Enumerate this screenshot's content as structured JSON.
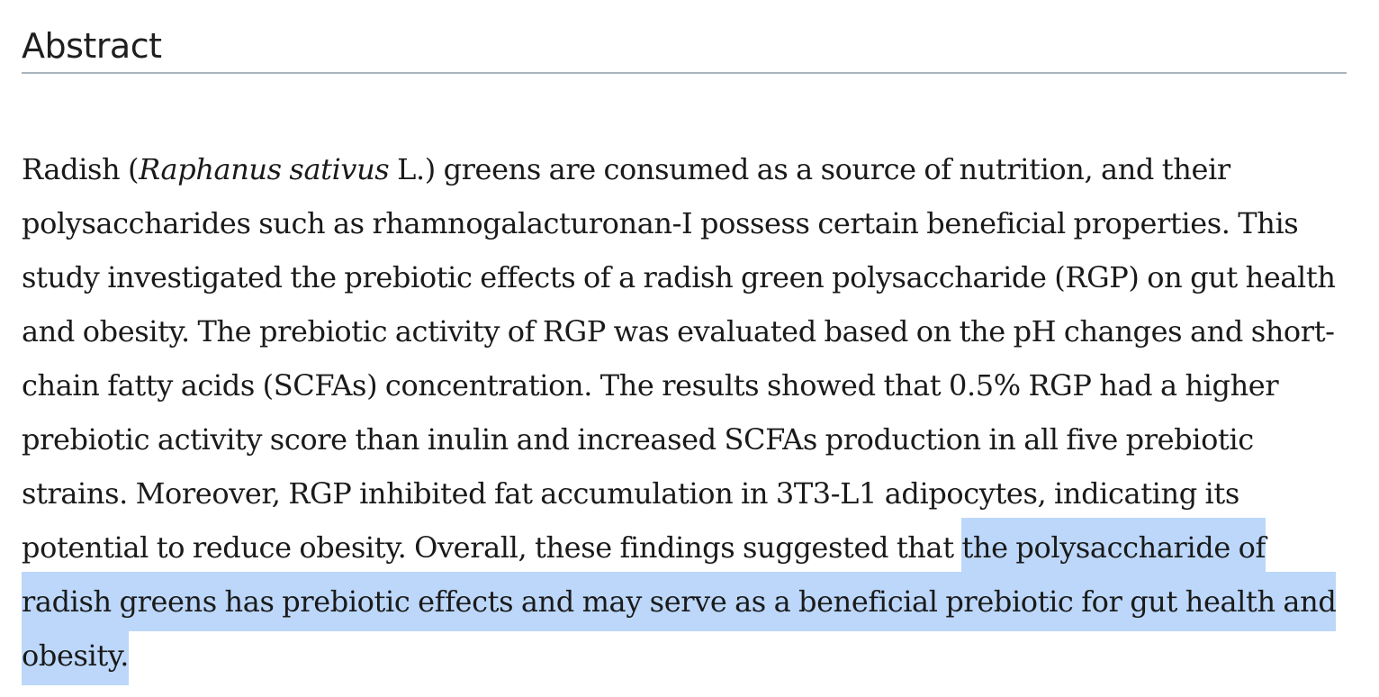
{
  "section": {
    "title": "Abstract"
  },
  "abstract": {
    "part1": "Radish (",
    "species": "Raphanus sativus",
    "part2": " L.) greens are consumed as a source of nutrition, and their polysaccharides such as rhamnogalacturonan-I possess certain beneficial properties. This study investigated the prebiotic effects of a radish green polysaccharide (RGP) on gut health and obesity. The prebiotic activity of RGP was evaluated based on the pH changes and short-chain fatty acids (SCFAs) concentration. The results showed that 0.5% RGP had a higher prebiotic activity score than inulin and increased SCFAs production in all five prebiotic strains. Moreover, RGP inhibited fat accumulation in 3T3-L1 adipocytes, indicating its potential to reduce obesity. Overall, these findings suggested that ",
    "highlighted": "the polysaccharide of radish greens has prebiotic effects and may serve as a beneficial prebiotic for gut health and obesity."
  },
  "colors": {
    "selection": "#bcd7fa",
    "rule": "#a9b6bd"
  }
}
